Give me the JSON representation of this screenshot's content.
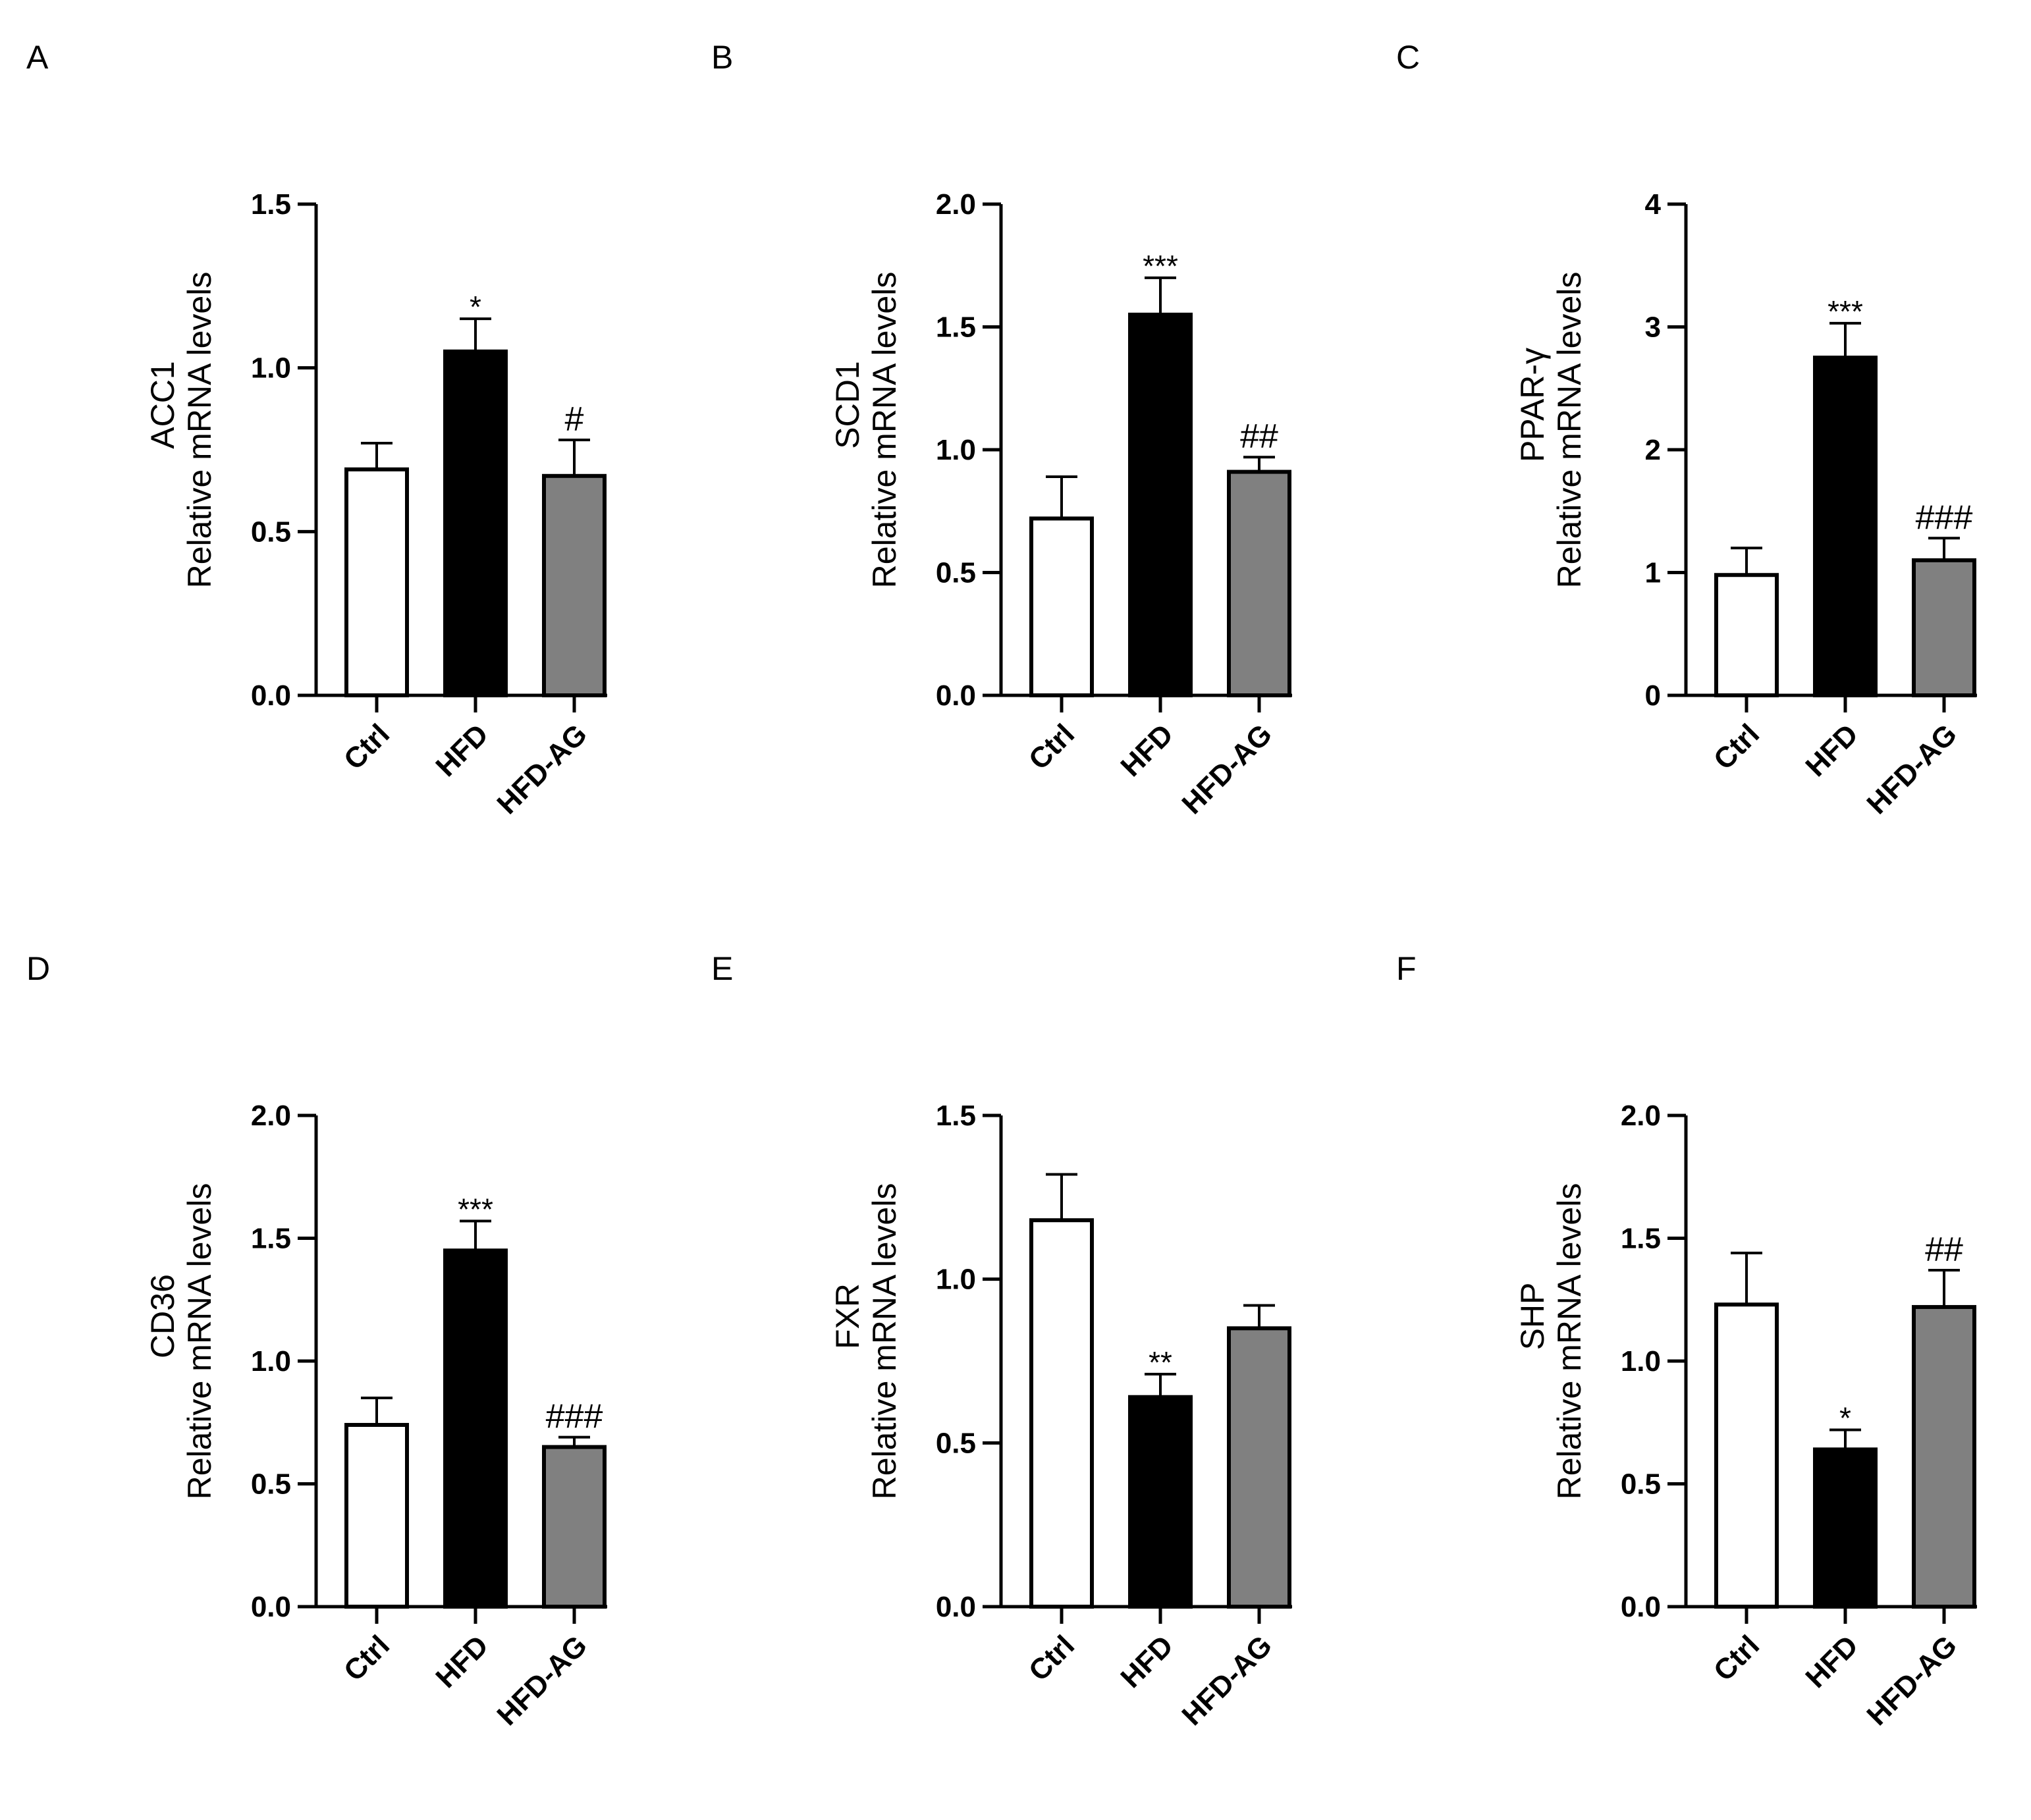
{
  "figure": {
    "colors": {
      "ctrl": "#ffffff",
      "hfd": "#000000",
      "hfd_ag": "#808080",
      "axis": "#000000"
    }
  },
  "chart_data": [
    {
      "panel": "A",
      "type": "bar",
      "gene": "ACC1",
      "ylabel": "Relative mRNA levels",
      "categories": [
        "Ctrl",
        "HFD",
        "HFD-AG"
      ],
      "values": [
        0.69,
        1.05,
        0.67
      ],
      "errors": [
        0.08,
        0.1,
        0.11
      ],
      "annotations": [
        "",
        "*",
        "#"
      ],
      "ylim": [
        0,
        1.5
      ],
      "yticks": [
        0.0,
        0.5,
        1.0,
        1.5
      ],
      "yticklabels": [
        "0.0",
        "0.5",
        "1.0",
        "1.5"
      ]
    },
    {
      "panel": "B",
      "type": "bar",
      "gene": "SCD1",
      "ylabel": "Relative mRNA levels",
      "categories": [
        "Ctrl",
        "HFD",
        "HFD-AG"
      ],
      "values": [
        0.72,
        1.55,
        0.91
      ],
      "errors": [
        0.17,
        0.15,
        0.06
      ],
      "annotations": [
        "",
        "***",
        "##"
      ],
      "ylim": [
        0,
        2.0
      ],
      "yticks": [
        0.0,
        0.5,
        1.0,
        1.5,
        2.0
      ],
      "yticklabels": [
        "0.0",
        "0.5",
        "1.0",
        "1.5",
        "2.0"
      ]
    },
    {
      "panel": "C",
      "type": "bar",
      "gene": "PPAR-γ",
      "ylabel": "Relative mRNA levels",
      "categories": [
        "Ctrl",
        "HFD",
        "HFD-AG"
      ],
      "values": [
        0.98,
        2.75,
        1.1
      ],
      "errors": [
        0.22,
        0.28,
        0.18
      ],
      "annotations": [
        "",
        "***",
        "###"
      ],
      "ylim": [
        0,
        4
      ],
      "yticks": [
        0,
        1,
        2,
        3,
        4
      ],
      "yticklabels": [
        "0",
        "1",
        "2",
        "3",
        "4"
      ]
    },
    {
      "panel": "D",
      "type": "bar",
      "gene": "CD36",
      "ylabel": "Relative mRNA levels",
      "categories": [
        "Ctrl",
        "HFD",
        "HFD-AG"
      ],
      "values": [
        0.74,
        1.45,
        0.65
      ],
      "errors": [
        0.11,
        0.12,
        0.04
      ],
      "annotations": [
        "",
        "***",
        "###"
      ],
      "ylim": [
        0,
        2.0
      ],
      "yticks": [
        0.0,
        0.5,
        1.0,
        1.5,
        2.0
      ],
      "yticklabels": [
        "0.0",
        "0.5",
        "1.0",
        "1.5",
        "2.0"
      ]
    },
    {
      "panel": "E",
      "type": "bar",
      "gene": "FXR",
      "ylabel": "Relative mRNA levels",
      "categories": [
        "Ctrl",
        "HFD",
        "HFD-AG"
      ],
      "values": [
        1.18,
        0.64,
        0.85
      ],
      "errors": [
        0.14,
        0.07,
        0.07
      ],
      "annotations": [
        "",
        "**",
        ""
      ],
      "ylim": [
        0,
        1.5
      ],
      "yticks": [
        0.0,
        0.5,
        1.0,
        1.5
      ],
      "yticklabels": [
        "0.0",
        "0.5",
        "1.0",
        "1.5"
      ]
    },
    {
      "panel": "F",
      "type": "bar",
      "gene": "SHP",
      "ylabel": "Relative mRNA levels",
      "categories": [
        "Ctrl",
        "HFD",
        "HFD-AG"
      ],
      "values": [
        1.23,
        0.64,
        1.22
      ],
      "errors": [
        0.21,
        0.08,
        0.15
      ],
      "annotations": [
        "",
        "*",
        "##"
      ],
      "ylim": [
        0,
        2.0
      ],
      "yticks": [
        0.0,
        0.5,
        1.0,
        1.5,
        2.0
      ],
      "yticklabels": [
        "0.0",
        "0.5",
        "1.0",
        "1.5",
        "2.0"
      ]
    }
  ]
}
